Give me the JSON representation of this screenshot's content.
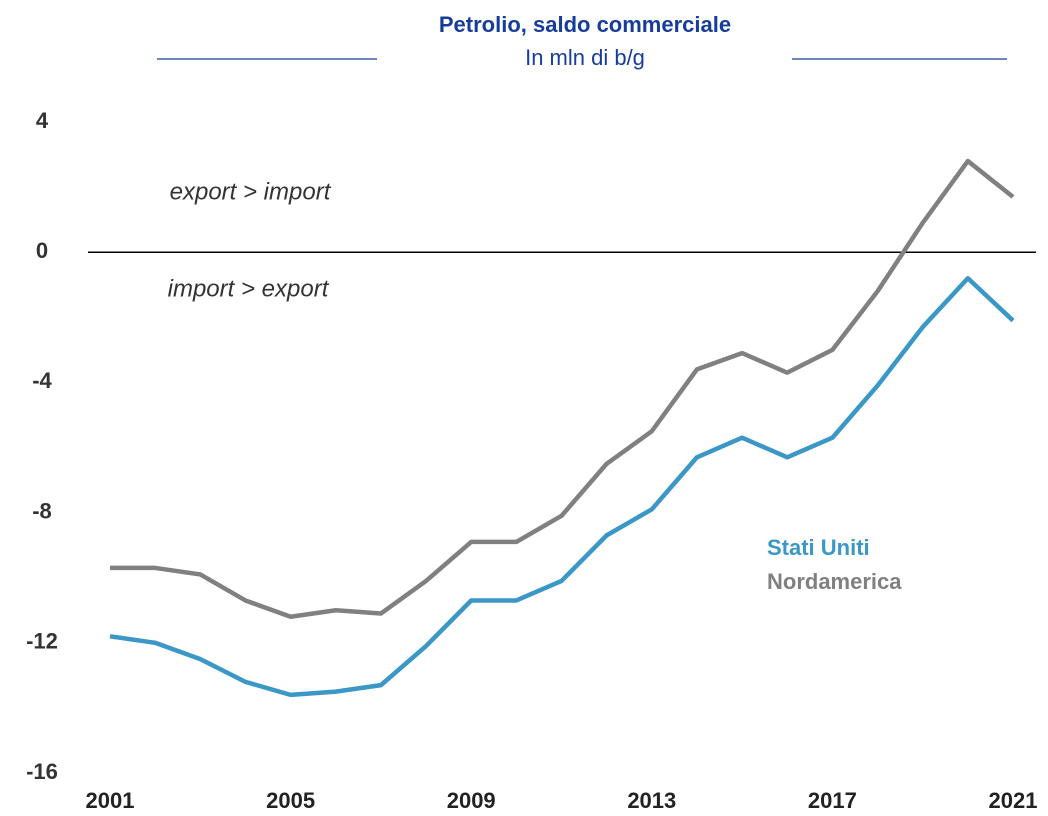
{
  "chart_data": {
    "type": "line",
    "title": "Petrolio, saldo commerciale",
    "subtitle": "In mln di b/g",
    "annotations": [
      "export > import",
      "import > export"
    ],
    "x": [
      2001,
      2002,
      2003,
      2004,
      2005,
      2006,
      2007,
      2008,
      2009,
      2010,
      2011,
      2012,
      2013,
      2014,
      2015,
      2016,
      2017,
      2018,
      2019,
      2020,
      2021
    ],
    "xlim": [
      2001,
      2021
    ],
    "xticks": [
      2001,
      2005,
      2009,
      2013,
      2017,
      2021
    ],
    "ylim": [
      -16,
      4
    ],
    "yticks": [
      -16,
      -12,
      -8,
      -4,
      0,
      4
    ],
    "series": [
      {
        "name": "Stati Uniti",
        "color": "#3a97c6",
        "values": [
          -11.8,
          -12.0,
          -12.5,
          -13.2,
          -13.6,
          -13.5,
          -13.3,
          -12.1,
          -10.7,
          -10.7,
          -10.1,
          -8.7,
          -7.9,
          -6.3,
          -5.7,
          -6.3,
          -5.7,
          -4.1,
          -2.3,
          -0.8,
          -2.1
        ]
      },
      {
        "name": "Nordamerica",
        "color": "#808080",
        "values": [
          -9.7,
          -9.7,
          -9.9,
          -10.7,
          -11.2,
          -11.0,
          -11.1,
          -10.1,
          -8.9,
          -8.9,
          -8.1,
          -6.5,
          -5.5,
          -3.6,
          -3.1,
          -3.7,
          -3.0,
          -1.2,
          0.9,
          2.8,
          1.7
        ]
      }
    ]
  }
}
